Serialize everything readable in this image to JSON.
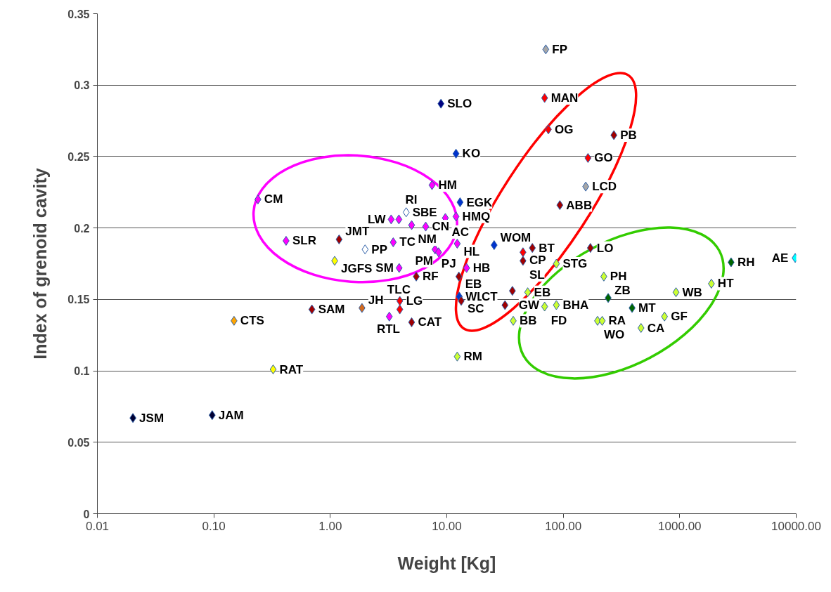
{
  "chart_data": {
    "type": "scatter",
    "xlabel": "Weight [Kg]",
    "ylabel": "Index of grenoid cavity",
    "log": "x",
    "grid": "y",
    "marker": "diamond",
    "xlim": [
      0.01,
      10000
    ],
    "ylim": [
      0,
      0.35
    ],
    "xticks": [
      {
        "value": 0.01,
        "label": "0.01"
      },
      {
        "value": 0.1,
        "label": "0.10"
      },
      {
        "value": 1,
        "label": "1.00"
      },
      {
        "value": 10,
        "label": "10.00"
      },
      {
        "value": 100,
        "label": "100.00"
      },
      {
        "value": 1000,
        "label": "1000.00"
      },
      {
        "value": 10000,
        "label": "10000.00"
      }
    ],
    "yticks": [
      0,
      0.05,
      0.1,
      0.15,
      0.2,
      0.25,
      0.3,
      0.35
    ],
    "x": [
      0.239,
      7.47,
      13.0,
      4.48,
      3.33,
      3.88,
      4.99,
      6.59,
      9.72,
      12.0,
      0.417,
      1.19,
      1.99,
      3.47,
      1.09,
      7.93,
      8.5,
      12.3,
      3.9,
      5.47,
      14.8,
      12.7,
      12.8,
      13.3,
      0.149,
      0.695,
      1.87,
      3.95,
      3.95,
      3.21,
      4.99,
      12.3,
      0.323,
      0.0968,
      0.0202,
      70.8,
      69.2,
      8.91,
      74.5,
      272,
      12.0,
      163,
      156,
      93.5,
      25.5,
      45.1,
      54.3,
      45.1,
      87.3,
      171,
      223,
      36.6,
      49.5,
      31.6,
      69.2,
      87.3,
      37.2,
      243,
      390,
      197,
      216,
      465,
      740,
      929,
      1870,
      2760,
      9800
    ],
    "values": [
      0.22,
      0.23,
      0.218,
      0.211,
      0.206,
      0.206,
      0.202,
      0.201,
      0.207,
      0.208,
      0.191,
      0.192,
      0.185,
      0.19,
      0.177,
      0.185,
      0.183,
      0.189,
      0.172,
      0.166,
      0.172,
      0.166,
      0.152,
      0.149,
      0.135,
      0.143,
      0.144,
      0.149,
      0.143,
      0.138,
      0.134,
      0.11,
      0.101,
      0.069,
      0.067,
      0.325,
      0.291,
      0.287,
      0.269,
      0.265,
      0.252,
      0.249,
      0.229,
      0.216,
      0.188,
      0.183,
      0.186,
      0.177,
      0.175,
      0.186,
      0.166,
      0.156,
      0.155,
      0.146,
      0.145,
      0.146,
      0.135,
      0.151,
      0.144,
      0.135,
      0.135,
      0.13,
      0.138,
      0.155,
      0.161,
      0.176,
      0.179
    ],
    "colors": [
      "#ff00ff",
      "#ff00ff",
      "#0033cc",
      "#ffffff",
      "#ff00ff",
      "#ff00ff",
      "#ff00ff",
      "#ff00ff",
      "#ff00ff",
      "#ff00ff",
      "#ff00ff",
      "#a00000",
      "#ffffff",
      "#ff00ff",
      "#ffff00",
      "#ff00ff",
      "#ff00ff",
      "#ff00ff",
      "#ff00ff",
      "#a00000",
      "#ff00ff",
      "#a00000",
      "#0033cc",
      "#a00000",
      "#ffa500",
      "#a00000",
      "#d2691e",
      "#ff0000",
      "#ff0000",
      "#ff00ff",
      "#a00000",
      "#ccff33",
      "#ffff00",
      "#000033",
      "#000033",
      "#a6a6a6",
      "#ff0000",
      "#000080",
      "#ff0000",
      "#a00000",
      "#0033cc",
      "#ff0000",
      "#a6a6a6",
      "#a00000",
      "#0033cc",
      "#ff0000",
      "#a00000",
      "#a00000",
      "#ccff33",
      "#a00000",
      "#ccff33",
      "#a00000",
      "#ccff33",
      "#a00000",
      "#ccff33",
      "#ccff33",
      "#ccff33",
      "#006600",
      "#006600",
      "#ccff33",
      "#ccff33",
      "#ccff33",
      "#ccff33",
      "#ccff33",
      "#ccff33",
      "#006600",
      "#00ffff"
    ],
    "annotations": [
      {
        "text": "CM",
        "x": 0.239,
        "y": 0.22
      },
      {
        "text": "HM",
        "x": 7.47,
        "y": 0.23
      },
      {
        "text": "EGK",
        "x": 13.0,
        "y": 0.218
      },
      {
        "text": "SBE",
        "x": 4.48,
        "y": 0.211
      },
      {
        "text": "LW",
        "x": 3.33,
        "y": 0.206
      },
      {
        "text": "RI",
        "x": 3.88,
        "y": 0.206
      },
      {
        "text": "NM",
        "x": 4.99,
        "y": 0.202
      },
      {
        "text": "CN",
        "x": 6.59,
        "y": 0.201
      },
      {
        "text": "AC",
        "x": 9.72,
        "y": 0.207
      },
      {
        "text": "HMQ",
        "x": 12.0,
        "y": 0.208
      },
      {
        "text": "SLR",
        "x": 0.417,
        "y": 0.191
      },
      {
        "text": "JMT",
        "x": 1.19,
        "y": 0.192
      },
      {
        "text": "PP",
        "x": 1.99,
        "y": 0.185
      },
      {
        "text": "TC",
        "x": 3.47,
        "y": 0.19
      },
      {
        "text": "JGFS",
        "x": 1.09,
        "y": 0.177
      },
      {
        "text": "PJ",
        "x": 7.93,
        "y": 0.185
      },
      {
        "text": "PM",
        "x": 8.5,
        "y": 0.183
      },
      {
        "text": "HL",
        "x": 12.3,
        "y": 0.189
      },
      {
        "text": "SM",
        "x": 3.9,
        "y": 0.172
      },
      {
        "text": "RF",
        "x": 5.47,
        "y": 0.166
      },
      {
        "text": "HB",
        "x": 14.8,
        "y": 0.172
      },
      {
        "text": "EB",
        "x": 12.7,
        "y": 0.166
      },
      {
        "text": "WL",
        "x": 12.8,
        "y": 0.152
      },
      {
        "text": "SC",
        "x": 13.3,
        "y": 0.149
      },
      {
        "text": "CTS",
        "x": 0.149,
        "y": 0.135
      },
      {
        "text": "SAM",
        "x": 0.695,
        "y": 0.143
      },
      {
        "text": "JH",
        "x": 1.87,
        "y": 0.144
      },
      {
        "text": "LG",
        "x": 3.95,
        "y": 0.149
      },
      {
        "text": "TLC",
        "x": 3.95,
        "y": 0.143
      },
      {
        "text": "RTL",
        "x": 3.21,
        "y": 0.138
      },
      {
        "text": "CAT",
        "x": 4.99,
        "y": 0.134
      },
      {
        "text": "RM",
        "x": 12.3,
        "y": 0.11
      },
      {
        "text": "RAT",
        "x": 0.323,
        "y": 0.101
      },
      {
        "text": "JAM",
        "x": 0.0968,
        "y": 0.069
      },
      {
        "text": "JSM",
        "x": 0.0202,
        "y": 0.067
      },
      {
        "text": "FP",
        "x": 70.8,
        "y": 0.325
      },
      {
        "text": "MAN",
        "x": 69.2,
        "y": 0.291
      },
      {
        "text": "SLO",
        "x": 8.91,
        "y": 0.287
      },
      {
        "text": "OG",
        "x": 74.5,
        "y": 0.269
      },
      {
        "text": "PB",
        "x": 272,
        "y": 0.265
      },
      {
        "text": "KO",
        "x": 12.0,
        "y": 0.252
      },
      {
        "text": "GO",
        "x": 163,
        "y": 0.249
      },
      {
        "text": "LCD",
        "x": 156,
        "y": 0.229
      },
      {
        "text": "ABB",
        "x": 93.5,
        "y": 0.216
      },
      {
        "text": "WOM",
        "x": 25.5,
        "y": 0.188
      },
      {
        "text": "CP",
        "x": 45.1,
        "y": 0.183
      },
      {
        "text": "BT",
        "x": 54.3,
        "y": 0.186
      },
      {
        "text": "SL",
        "x": 45.1,
        "y": 0.177
      },
      {
        "text": "STG",
        "x": 87.3,
        "y": 0.175
      },
      {
        "text": "LO",
        "x": 171,
        "y": 0.186
      },
      {
        "text": "PH",
        "x": 223,
        "y": 0.166
      },
      {
        "text": "GW",
        "x": 36.6,
        "y": 0.156
      },
      {
        "text": "EB",
        "x": 49.5,
        "y": 0.155
      },
      {
        "text": "CT",
        "x": 31.6,
        "y": 0.146
      },
      {
        "text": "FD",
        "x": 69.2,
        "y": 0.145
      },
      {
        "text": "BHA",
        "x": 87.3,
        "y": 0.146
      },
      {
        "text": "BB",
        "x": 37.2,
        "y": 0.135
      },
      {
        "text": "ZB",
        "x": 243,
        "y": 0.151
      },
      {
        "text": "MT",
        "x": 390,
        "y": 0.144
      },
      {
        "text": "WO",
        "x": 197,
        "y": 0.135
      },
      {
        "text": "RA",
        "x": 216,
        "y": 0.135
      },
      {
        "text": "CA",
        "x": 465,
        "y": 0.13
      },
      {
        "text": "GF",
        "x": 740,
        "y": 0.138
      },
      {
        "text": "WB",
        "x": 929,
        "y": 0.155
      },
      {
        "text": "HT",
        "x": 1870,
        "y": 0.161
      },
      {
        "text": "RH",
        "x": 2760,
        "y": 0.176
      },
      {
        "text": "AE",
        "x": 9800,
        "y": 0.179
      }
    ]
  }
}
